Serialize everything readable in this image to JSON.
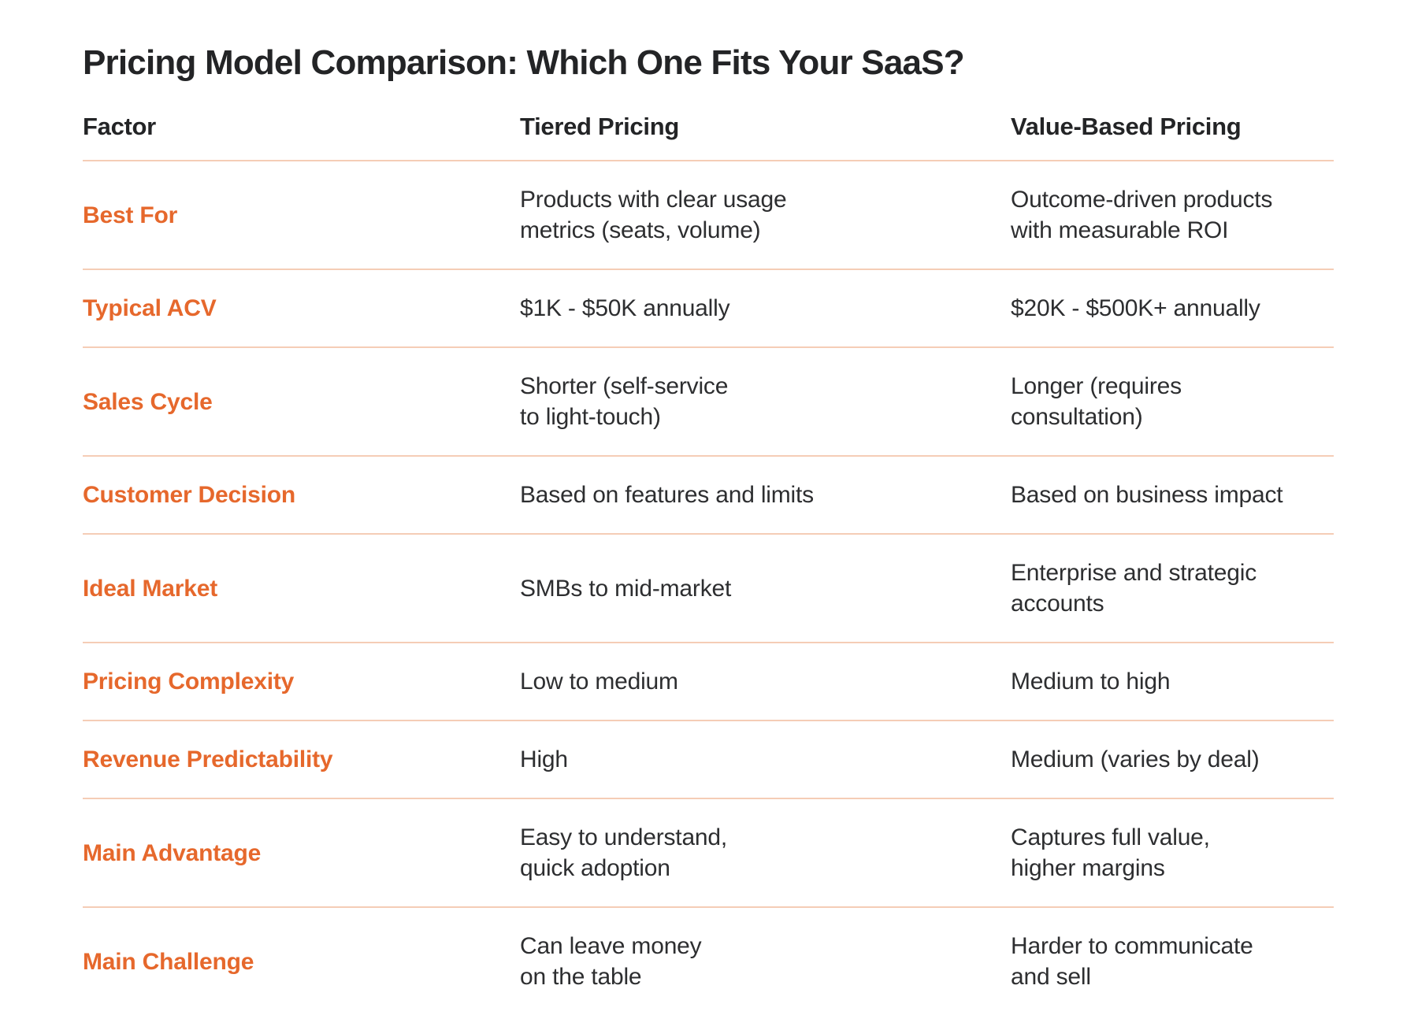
{
  "page": {
    "title": "Pricing Model Comparison: Which One Fits Your SaaS?"
  },
  "colors": {
    "accent_orange": "#E6682C",
    "divider_peach": "#F5CDB6",
    "text_dark": "#2D2E30",
    "background": "#FFFFFF"
  },
  "table": {
    "columns": {
      "factor": "Factor",
      "tiered": "Tiered Pricing",
      "value_based": "Value-Based Pricing"
    },
    "rows": [
      {
        "factor": "Best For",
        "tiered": "Products with clear usage\nmetrics (seats, volume)",
        "value_based": "Outcome-driven products\nwith measurable ROI"
      },
      {
        "factor": "Typical ACV",
        "tiered": "$1K - $50K annually",
        "value_based": "$20K - $500K+ annually"
      },
      {
        "factor": "Sales Cycle",
        "tiered": "Shorter (self-service\nto light-touch)",
        "value_based": "Longer (requires\nconsultation)"
      },
      {
        "factor": "Customer Decision",
        "tiered": "Based on features and limits",
        "value_based": "Based on business impact"
      },
      {
        "factor": "Ideal Market",
        "tiered": "SMBs to mid-market",
        "value_based": "Enterprise and strategic\naccounts"
      },
      {
        "factor": "Pricing Complexity",
        "tiered": "Low to medium",
        "value_based": "Medium to high"
      },
      {
        "factor": "Revenue Predictability",
        "tiered": "High",
        "value_based": "Medium (varies by deal)"
      },
      {
        "factor": "Main Advantage",
        "tiered": "Easy to understand,\nquick adoption",
        "value_based": "Captures full value,\nhigher margins"
      },
      {
        "factor": "Main Challenge",
        "tiered": "Can leave money\non the table",
        "value_based": "Harder to communicate\nand sell"
      }
    ]
  },
  "chart_data": {
    "type": "table",
    "title": "Pricing Model Comparison: Which One Fits Your SaaS?",
    "columns": [
      "Factor",
      "Tiered Pricing",
      "Value-Based Pricing"
    ],
    "rows": [
      [
        "Best For",
        "Products with clear usage metrics (seats, volume)",
        "Outcome-driven products with measurable ROI"
      ],
      [
        "Typical ACV",
        "$1K - $50K annually",
        "$20K - $500K+ annually"
      ],
      [
        "Sales Cycle",
        "Shorter (self-service to light-touch)",
        "Longer (requires consultation)"
      ],
      [
        "Customer Decision",
        "Based on features and limits",
        "Based on business impact"
      ],
      [
        "Ideal Market",
        "SMBs to mid-market",
        "Enterprise and strategic accounts"
      ],
      [
        "Pricing Complexity",
        "Low to medium",
        "Medium to high"
      ],
      [
        "Revenue Predictability",
        "High",
        "Medium (varies by deal)"
      ],
      [
        "Main Advantage",
        "Easy to understand, quick adoption",
        "Captures full value, higher margins"
      ],
      [
        "Main Challenge",
        "Can leave money on the table",
        "Harder to communicate and sell"
      ]
    ]
  }
}
